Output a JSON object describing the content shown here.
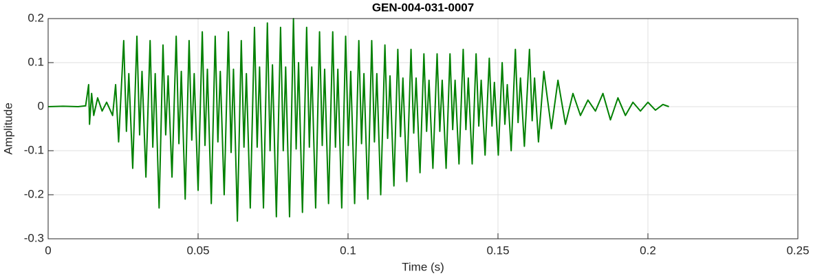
{
  "chart_data": {
    "type": "line",
    "title": "GEN-004-031-0007",
    "xlabel": "Time (s)",
    "ylabel": "Amplitude",
    "color": "#008000",
    "grid": true,
    "xlim": [
      0,
      0.25
    ],
    "xticks": [
      0,
      0.05,
      0.1,
      0.15,
      0.2,
      0.25
    ],
    "ylim": [
      -0.3,
      0.2
    ],
    "yticks": [
      -0.3,
      -0.2,
      -0.1,
      0,
      0.1,
      0.2
    ],
    "x": [
      0,
      0.005,
      0.01,
      0.0125,
      0.0135,
      0.0138,
      0.0145,
      0.0152,
      0.0165,
      0.018,
      0.0195,
      0.0215,
      0.0225,
      0.0235,
      0.0252,
      0.0261,
      0.0269,
      0.0282,
      0.0296,
      0.0305,
      0.0313,
      0.0326,
      0.034,
      0.0349,
      0.0357,
      0.037,
      0.0383,
      0.0392,
      0.04,
      0.0413,
      0.0427,
      0.0436,
      0.0444,
      0.0457,
      0.047,
      0.0479,
      0.0487,
      0.05,
      0.0514,
      0.0523,
      0.0531,
      0.0544,
      0.0557,
      0.0566,
      0.0574,
      0.0587,
      0.0601,
      0.061,
      0.0618,
      0.0631,
      0.0644,
      0.0653,
      0.0661,
      0.0674,
      0.0688,
      0.0697,
      0.0705,
      0.0718,
      0.0731,
      0.074,
      0.0748,
      0.0761,
      0.0775,
      0.0784,
      0.0792,
      0.0805,
      0.0818,
      0.0827,
      0.0835,
      0.0848,
      0.0862,
      0.0871,
      0.0879,
      0.0892,
      0.0905,
      0.0914,
      0.0922,
      0.0935,
      0.0949,
      0.0958,
      0.0966,
      0.0979,
      0.0992,
      0.1001,
      0.1009,
      0.1022,
      0.1036,
      0.1045,
      0.1053,
      0.1066,
      0.1079,
      0.1088,
      0.1096,
      0.1109,
      0.1123,
      0.1132,
      0.114,
      0.1153,
      0.1166,
      0.1175,
      0.1183,
      0.1196,
      0.121,
      0.1219,
      0.1227,
      0.124,
      0.1253,
      0.1262,
      0.127,
      0.1283,
      0.1297,
      0.1306,
      0.1314,
      0.1327,
      0.134,
      0.1349,
      0.1357,
      0.137,
      0.1384,
      0.1393,
      0.1401,
      0.1414,
      0.1427,
      0.1436,
      0.1444,
      0.1457,
      0.1471,
      0.148,
      0.1488,
      0.1501,
      0.1514,
      0.1523,
      0.1531,
      0.1544,
      0.1558,
      0.1567,
      0.1575,
      0.1588,
      0.1605,
      0.1614,
      0.1622,
      0.1635,
      0.1653,
      0.1678,
      0.17,
      0.1725,
      0.175,
      0.1775,
      0.18,
      0.1825,
      0.185,
      0.1875,
      0.19,
      0.1925,
      0.195,
      0.1975,
      0.2,
      0.2025,
      0.205,
      0.207
    ],
    "values": [
      0,
      0.001,
      0,
      0.002,
      0.05,
      -0.04,
      0.03,
      -0.02,
      0.02,
      -0.01,
      0.01,
      -0.02,
      0.05,
      -0.08,
      0.15,
      -0.056,
      0.075,
      -0.14,
      0.16,
      -0.064,
      0.08,
      -0.16,
      0.15,
      -0.092,
      0.075,
      -0.23,
      0.14,
      -0.064,
      0.07,
      -0.16,
      0.16,
      -0.084,
      0.08,
      -0.21,
      0.15,
      -0.076,
      0.075,
      -0.19,
      0.17,
      -0.088,
      0.085,
      -0.22,
      0.16,
      -0.08,
      0.08,
      -0.2,
      0.17,
      -0.104,
      0.085,
      -0.26,
      0.15,
      -0.092,
      0.075,
      -0.23,
      0.18,
      -0.092,
      0.09,
      -0.23,
      0.19,
      -0.1,
      0.095,
      -0.25,
      0.18,
      -0.1,
      0.09,
      -0.25,
      0.2,
      -0.096,
      0.1,
      -0.24,
      0.18,
      -0.092,
      0.09,
      -0.23,
      0.17,
      -0.088,
      0.085,
      -0.22,
      0.17,
      -0.092,
      0.085,
      -0.23,
      0.16,
      -0.088,
      0.08,
      -0.22,
      0.15,
      -0.084,
      0.075,
      -0.21,
      0.15,
      -0.08,
      0.075,
      -0.2,
      0.14,
      -0.072,
      0.07,
      -0.18,
      0.13,
      -0.068,
      0.065,
      -0.17,
      0.13,
      -0.06,
      0.065,
      -0.15,
      0.12,
      -0.056,
      0.06,
      -0.14,
      0.12,
      -0.056,
      0.06,
      -0.14,
      0.12,
      -0.052,
      0.06,
      -0.13,
      0.13,
      -0.052,
      0.065,
      -0.13,
      0.12,
      -0.044,
      0.06,
      -0.11,
      0.11,
      -0.044,
      0.055,
      -0.11,
      0.1,
      -0.04,
      0.05,
      -0.1,
      0.13,
      -0.036,
      0.065,
      -0.09,
      0.13,
      -0.032,
      0.065,
      -0.08,
      0.08,
      -0.05,
      0.06,
      -0.04,
      0.03,
      -0.02,
      0.015,
      -0.01,
      0.03,
      -0.03,
      0.02,
      -0.02,
      0.01,
      -0.01,
      0.01,
      -0.008,
      0.005,
      0
    ]
  }
}
